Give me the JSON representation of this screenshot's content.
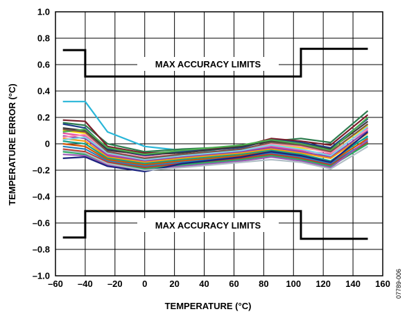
{
  "chart_data": {
    "type": "line",
    "xlabel": "TEMPERATURE (°C)",
    "ylabel": "TEMPERATURE ERROR (°C)",
    "xlim": [
      -60,
      160
    ],
    "ylim": [
      -1.0,
      1.0
    ],
    "x_ticks": [
      -60,
      -40,
      -20,
      0,
      20,
      40,
      60,
      80,
      100,
      120,
      140,
      160
    ],
    "x_tick_labels": [
      "–60",
      "–40",
      "–20",
      "0",
      "20",
      "40",
      "60",
      "80",
      "100",
      "120",
      "140",
      "160"
    ],
    "y_ticks": [
      1.0,
      0.8,
      0.6,
      0.4,
      0.2,
      0,
      -0.2,
      -0.4,
      -0.6,
      -0.8,
      -1.0
    ],
    "y_tick_labels": [
      "1.0",
      "0.8",
      "0.6",
      "0.4",
      "0.2",
      "0",
      "–0.2",
      "–0.4",
      "–0.6",
      "–0.8",
      "–1.0"
    ],
    "grid": true,
    "limit_label_upper": "MAX ACCURACY LIMITS",
    "limit_label_lower": "MAX ACCURACY LIMITS",
    "limits": {
      "upper": {
        "x": [
          -55,
          -40,
          -40,
          105,
          105,
          150
        ],
        "y": [
          0.71,
          0.71,
          0.51,
          0.51,
          0.72,
          0.72
        ]
      },
      "lower": {
        "x": [
          -55,
          -40,
          -40,
          105,
          105,
          150
        ],
        "y": [
          -0.71,
          -0.71,
          -0.51,
          -0.51,
          -0.72,
          -0.72
        ]
      }
    },
    "x": [
      -55,
      -40,
      -25,
      0,
      25,
      65,
      85,
      105,
      125,
      150
    ],
    "series": [
      {
        "color": "#29b6d8",
        "values": [
          0.32,
          0.32,
          0.09,
          -0.02,
          -0.05,
          -0.06,
          -0.05,
          -0.07,
          -0.09,
          0.05
        ]
      },
      {
        "color": "#2e7d4f",
        "values": [
          0.16,
          0.14,
          0.0,
          -0.06,
          -0.04,
          -0.02,
          0.02,
          0.04,
          0.01,
          0.25
        ]
      },
      {
        "color": "#7a1e2a",
        "values": [
          0.18,
          0.17,
          -0.02,
          -0.07,
          -0.06,
          -0.02,
          0.04,
          0.02,
          -0.01,
          0.22
        ]
      },
      {
        "color": "#1f3f8a",
        "values": [
          0.15,
          0.12,
          -0.04,
          -0.09,
          -0.06,
          -0.03,
          0.03,
          0.01,
          -0.03,
          0.19
        ]
      },
      {
        "color": "#3a3a3a",
        "values": [
          0.12,
          0.1,
          -0.05,
          -0.08,
          -0.07,
          -0.02,
          0.02,
          0.0,
          -0.04,
          0.17
        ]
      },
      {
        "color": "#ffe000",
        "values": [
          0.1,
          0.08,
          -0.07,
          -0.11,
          -0.09,
          -0.05,
          -0.01,
          -0.03,
          -0.06,
          0.14
        ]
      },
      {
        "color": "#e64ca0",
        "values": [
          0.08,
          0.06,
          -0.08,
          -0.12,
          -0.1,
          -0.06,
          -0.02,
          -0.05,
          -0.08,
          0.12
        ]
      },
      {
        "color": "#8e44ad",
        "values": [
          0.06,
          0.04,
          -0.09,
          -0.13,
          -0.1,
          -0.06,
          -0.03,
          -0.06,
          -0.1,
          0.1
        ]
      },
      {
        "color": "#f39c12",
        "values": [
          0.04,
          0.02,
          -0.1,
          -0.14,
          -0.11,
          -0.07,
          -0.04,
          -0.07,
          -0.11,
          0.08
        ]
      },
      {
        "color": "#16a085",
        "values": [
          0.02,
          0.0,
          -0.11,
          -0.15,
          -0.12,
          -0.08,
          -0.05,
          -0.08,
          -0.13,
          0.06
        ]
      },
      {
        "color": "#d35400",
        "values": [
          0.0,
          -0.02,
          -0.12,
          -0.16,
          -0.13,
          -0.09,
          -0.06,
          -0.09,
          -0.14,
          0.04
        ]
      },
      {
        "color": "#2980b9",
        "values": [
          -0.02,
          -0.04,
          -0.13,
          -0.17,
          -0.14,
          -0.1,
          -0.07,
          -0.1,
          -0.15,
          0.02
        ]
      },
      {
        "color": "#c0392b",
        "values": [
          -0.04,
          -0.06,
          -0.14,
          -0.18,
          -0.15,
          -0.11,
          -0.08,
          -0.11,
          -0.16,
          0.01
        ]
      },
      {
        "color": "#27ae60",
        "values": [
          -0.06,
          -0.08,
          -0.15,
          -0.19,
          -0.16,
          -0.12,
          -0.09,
          -0.12,
          -0.17,
          0.0
        ]
      },
      {
        "color": "#9b59b6",
        "values": [
          -0.08,
          -0.09,
          -0.16,
          -0.2,
          -0.17,
          -0.13,
          -0.1,
          -0.13,
          -0.18,
          0.03
        ]
      },
      {
        "color": "#1a237e",
        "values": [
          -0.11,
          -0.1,
          -0.17,
          -0.21,
          -0.15,
          -0.1,
          -0.06,
          -0.09,
          -0.14,
          0.09
        ]
      },
      {
        "color": "#ff8fb1",
        "values": [
          0.05,
          0.07,
          -0.06,
          -0.1,
          -0.08,
          -0.04,
          0.0,
          -0.02,
          -0.07,
          0.11
        ]
      },
      {
        "color": "#7fd3e6",
        "values": [
          0.03,
          0.05,
          -0.07,
          -0.12,
          -0.09,
          -0.05,
          -0.01,
          -0.04,
          -0.09,
          0.13
        ]
      },
      {
        "color": "#4caf50",
        "values": [
          0.09,
          0.11,
          -0.03,
          -0.08,
          -0.05,
          -0.01,
          0.03,
          0.0,
          -0.05,
          0.2
        ]
      },
      {
        "color": "#b0bec5",
        "values": [
          -0.05,
          -0.07,
          -0.15,
          -0.2,
          -0.18,
          -0.14,
          -0.12,
          -0.14,
          -0.19,
          -0.02
        ]
      },
      {
        "color": "#795548",
        "values": [
          0.11,
          0.09,
          -0.06,
          -0.11,
          -0.08,
          -0.04,
          0.01,
          -0.01,
          -0.06,
          0.15
        ]
      }
    ]
  },
  "figure_id": "07789-006"
}
